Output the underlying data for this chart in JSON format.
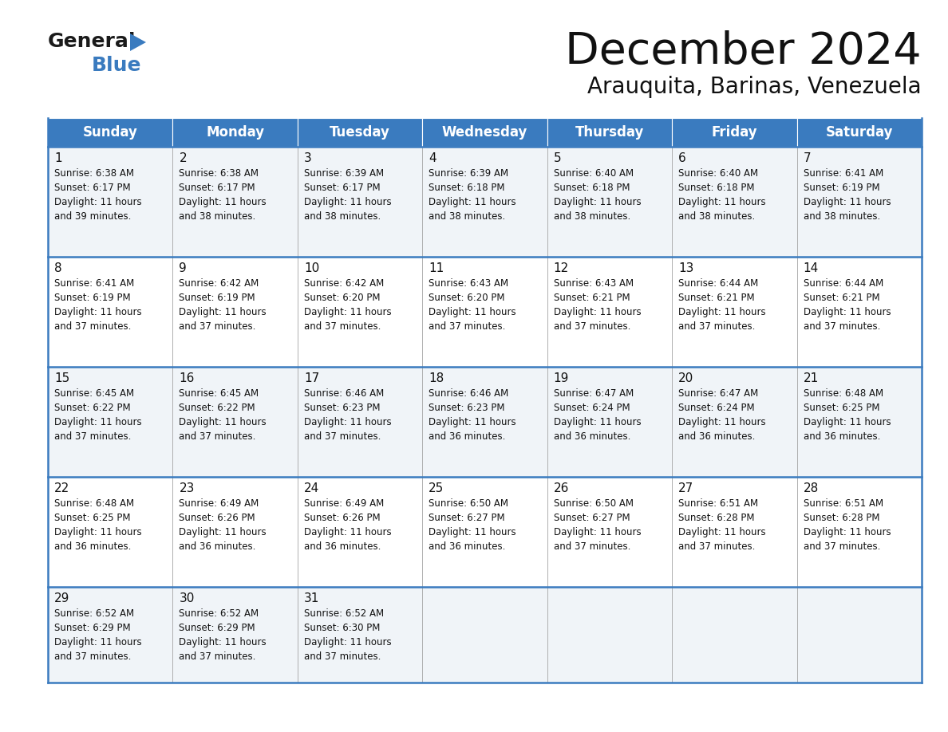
{
  "title": "December 2024",
  "subtitle": "Arauquita, Barinas, Venezuela",
  "header_color": "#3a7bbf",
  "header_text_color": "#ffffff",
  "cell_bg_even": "#f0f4f8",
  "cell_bg_odd": "#ffffff",
  "border_color": "#3a7bbf",
  "cell_border_color": "#aaaaaa",
  "days_of_week": [
    "Sunday",
    "Monday",
    "Tuesday",
    "Wednesday",
    "Thursday",
    "Friday",
    "Saturday"
  ],
  "calendar_data": [
    [
      {
        "day": 1,
        "sunrise": "6:38 AM",
        "sunset": "6:17 PM",
        "daylight": "11 hours and 39 minutes."
      },
      {
        "day": 2,
        "sunrise": "6:38 AM",
        "sunset": "6:17 PM",
        "daylight": "11 hours and 38 minutes."
      },
      {
        "day": 3,
        "sunrise": "6:39 AM",
        "sunset": "6:17 PM",
        "daylight": "11 hours and 38 minutes."
      },
      {
        "day": 4,
        "sunrise": "6:39 AM",
        "sunset": "6:18 PM",
        "daylight": "11 hours and 38 minutes."
      },
      {
        "day": 5,
        "sunrise": "6:40 AM",
        "sunset": "6:18 PM",
        "daylight": "11 hours and 38 minutes."
      },
      {
        "day": 6,
        "sunrise": "6:40 AM",
        "sunset": "6:18 PM",
        "daylight": "11 hours and 38 minutes."
      },
      {
        "day": 7,
        "sunrise": "6:41 AM",
        "sunset": "6:19 PM",
        "daylight": "11 hours and 38 minutes."
      }
    ],
    [
      {
        "day": 8,
        "sunrise": "6:41 AM",
        "sunset": "6:19 PM",
        "daylight": "11 hours and 37 minutes."
      },
      {
        "day": 9,
        "sunrise": "6:42 AM",
        "sunset": "6:19 PM",
        "daylight": "11 hours and 37 minutes."
      },
      {
        "day": 10,
        "sunrise": "6:42 AM",
        "sunset": "6:20 PM",
        "daylight": "11 hours and 37 minutes."
      },
      {
        "day": 11,
        "sunrise": "6:43 AM",
        "sunset": "6:20 PM",
        "daylight": "11 hours and 37 minutes."
      },
      {
        "day": 12,
        "sunrise": "6:43 AM",
        "sunset": "6:21 PM",
        "daylight": "11 hours and 37 minutes."
      },
      {
        "day": 13,
        "sunrise": "6:44 AM",
        "sunset": "6:21 PM",
        "daylight": "11 hours and 37 minutes."
      },
      {
        "day": 14,
        "sunrise": "6:44 AM",
        "sunset": "6:21 PM",
        "daylight": "11 hours and 37 minutes."
      }
    ],
    [
      {
        "day": 15,
        "sunrise": "6:45 AM",
        "sunset": "6:22 PM",
        "daylight": "11 hours and 37 minutes."
      },
      {
        "day": 16,
        "sunrise": "6:45 AM",
        "sunset": "6:22 PM",
        "daylight": "11 hours and 37 minutes."
      },
      {
        "day": 17,
        "sunrise": "6:46 AM",
        "sunset": "6:23 PM",
        "daylight": "11 hours and 37 minutes."
      },
      {
        "day": 18,
        "sunrise": "6:46 AM",
        "sunset": "6:23 PM",
        "daylight": "11 hours and 36 minutes."
      },
      {
        "day": 19,
        "sunrise": "6:47 AM",
        "sunset": "6:24 PM",
        "daylight": "11 hours and 36 minutes."
      },
      {
        "day": 20,
        "sunrise": "6:47 AM",
        "sunset": "6:24 PM",
        "daylight": "11 hours and 36 minutes."
      },
      {
        "day": 21,
        "sunrise": "6:48 AM",
        "sunset": "6:25 PM",
        "daylight": "11 hours and 36 minutes."
      }
    ],
    [
      {
        "day": 22,
        "sunrise": "6:48 AM",
        "sunset": "6:25 PM",
        "daylight": "11 hours and 36 minutes."
      },
      {
        "day": 23,
        "sunrise": "6:49 AM",
        "sunset": "6:26 PM",
        "daylight": "11 hours and 36 minutes."
      },
      {
        "day": 24,
        "sunrise": "6:49 AM",
        "sunset": "6:26 PM",
        "daylight": "11 hours and 36 minutes."
      },
      {
        "day": 25,
        "sunrise": "6:50 AM",
        "sunset": "6:27 PM",
        "daylight": "11 hours and 36 minutes."
      },
      {
        "day": 26,
        "sunrise": "6:50 AM",
        "sunset": "6:27 PM",
        "daylight": "11 hours and 37 minutes."
      },
      {
        "day": 27,
        "sunrise": "6:51 AM",
        "sunset": "6:28 PM",
        "daylight": "11 hours and 37 minutes."
      },
      {
        "day": 28,
        "sunrise": "6:51 AM",
        "sunset": "6:28 PM",
        "daylight": "11 hours and 37 minutes."
      }
    ],
    [
      {
        "day": 29,
        "sunrise": "6:52 AM",
        "sunset": "6:29 PM",
        "daylight": "11 hours and 37 minutes."
      },
      {
        "day": 30,
        "sunrise": "6:52 AM",
        "sunset": "6:29 PM",
        "daylight": "11 hours and 37 minutes."
      },
      {
        "day": 31,
        "sunrise": "6:52 AM",
        "sunset": "6:30 PM",
        "daylight": "11 hours and 37 minutes."
      },
      null,
      null,
      null,
      null
    ]
  ]
}
